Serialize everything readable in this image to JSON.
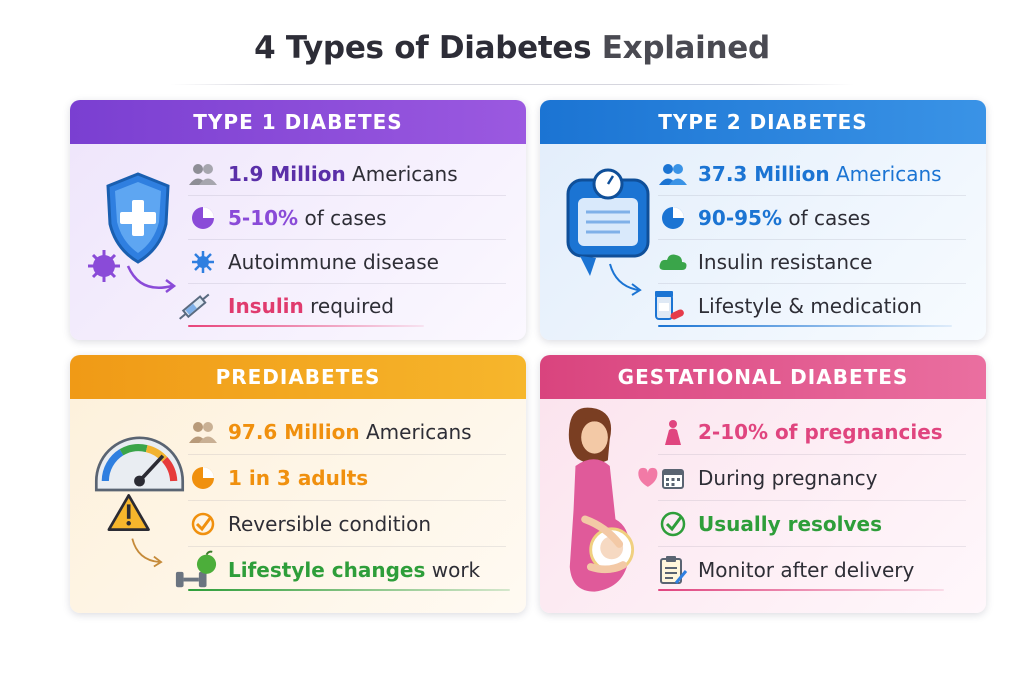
{
  "title": {
    "main": "4 Types of Diabetes",
    "muted": "Explained"
  },
  "colors": {
    "purple": "#8a4bd8",
    "blue": "#1b74d3",
    "orange": "#f09a16",
    "pink": "#e0457f",
    "green": "#2e9e3a"
  },
  "cards": [
    {
      "heading": "TYPE 1 DIABETES",
      "rows": [
        {
          "icon": "people-icon",
          "strong": "1.9 Million",
          "text": " Americans"
        },
        {
          "icon": "pie-icon",
          "strong": "5-10%",
          "text": " of cases"
        },
        {
          "icon": "virus-icon",
          "strong": "",
          "text": "Autoimmune disease"
        },
        {
          "icon": "syringe-icon",
          "strong": "Insulin",
          "text": " required"
        }
      ]
    },
    {
      "heading": "TYPE 2 DIABETES",
      "rows": [
        {
          "icon": "people-icon",
          "strong": "37.3 Million",
          "text": " Americans"
        },
        {
          "icon": "pie-icon",
          "strong": "90-95%",
          "text": " of cases"
        },
        {
          "icon": "cloud-icon",
          "strong": "",
          "text": "Insulin resistance"
        },
        {
          "icon": "pill-bottle-icon",
          "strong": "",
          "text": "Lifestyle & medication"
        }
      ]
    },
    {
      "heading": "PREDIABETES",
      "rows": [
        {
          "icon": "people-icon",
          "strong": "97.6 Million",
          "text": " Americans"
        },
        {
          "icon": "pie-icon",
          "strong": "1 in 3 adults",
          "text": ""
        },
        {
          "icon": "check-badge-icon",
          "strong": "",
          "text": "Reversible condition"
        },
        {
          "icon": "dumbbell-apple-icon",
          "strong": "Lifestyle changes",
          "text": " work"
        }
      ]
    },
    {
      "heading": "GESTATIONAL DIABETES",
      "rows": [
        {
          "icon": "pregnant-icon",
          "strong": "2-10% of pregnancies",
          "text": ""
        },
        {
          "icon": "calendar-icon",
          "strong": "",
          "text": "During pregnancy"
        },
        {
          "icon": "check-circle-icon",
          "strong": "Usually resolves",
          "text": ""
        },
        {
          "icon": "clipboard-icon",
          "strong": "",
          "text": "Monitor after delivery"
        }
      ]
    }
  ]
}
